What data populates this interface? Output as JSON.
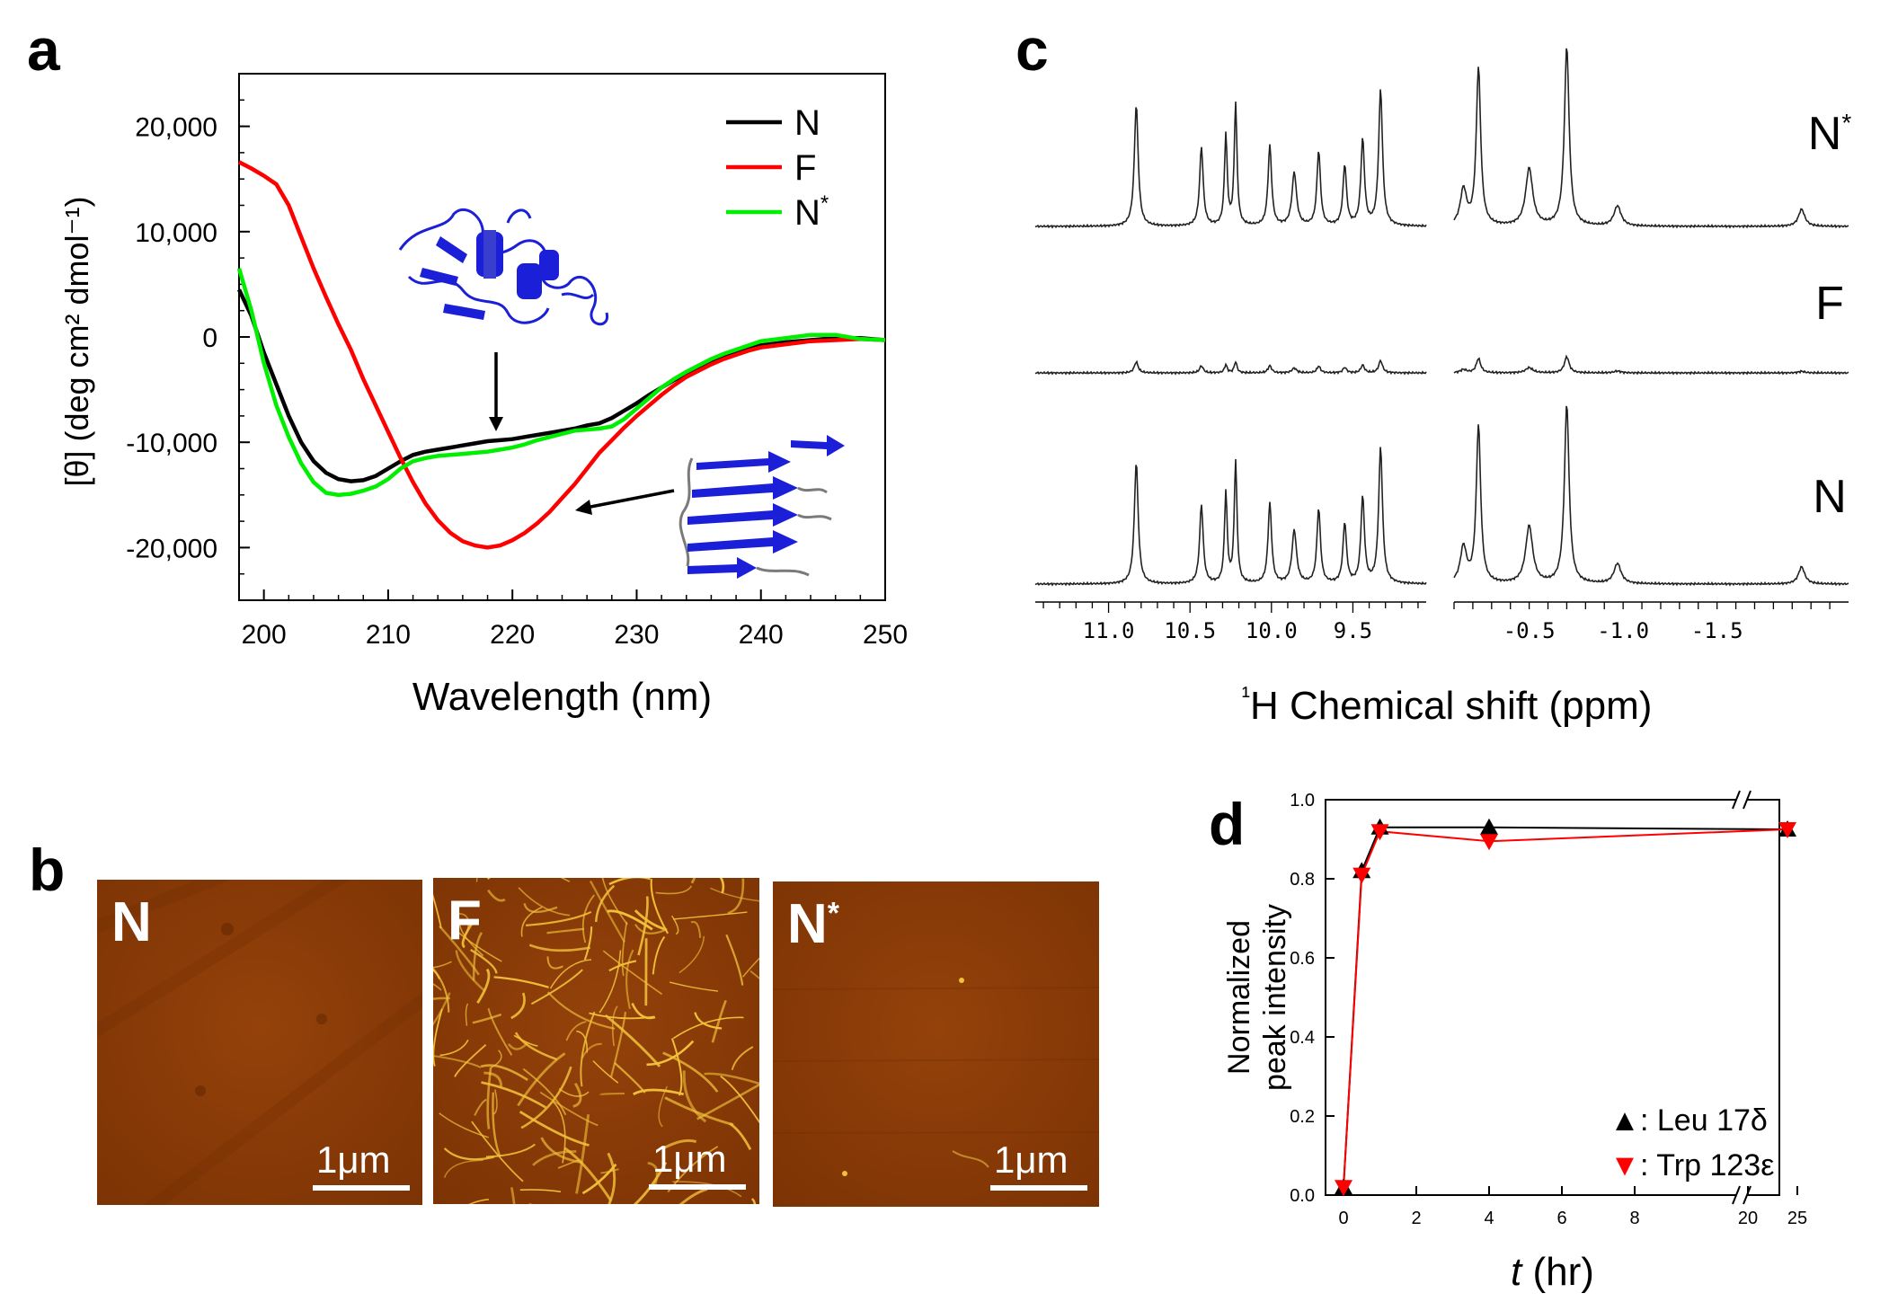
{
  "panels": {
    "a": "a",
    "b": "b",
    "c": "c",
    "d": "d"
  },
  "chart_data": [
    {
      "type": "line",
      "panel": "a",
      "xlabel": "Wavelength (nm)",
      "ylabel": "[θ] (deg cm² dmol⁻¹)",
      "xlim": [
        198,
        250
      ],
      "ylim": [
        -25000,
        25000
      ],
      "xticks": [
        "200",
        "210",
        "220",
        "230",
        "240",
        "250"
      ],
      "yticks": [
        "20,000",
        "10,000",
        "0",
        "-10,000",
        "-20,000"
      ],
      "legend_position": "top-right",
      "series": [
        {
          "name": "N",
          "color": "#000000",
          "x": [
            198,
            199,
            200,
            201,
            202,
            203,
            204,
            205,
            206,
            207,
            208,
            209,
            210,
            211,
            212,
            213,
            214,
            215,
            216,
            217,
            218,
            219,
            220,
            221,
            222,
            223,
            224,
            225,
            226,
            227,
            228,
            229,
            230,
            231,
            232,
            233,
            234,
            235,
            236,
            237,
            238,
            239,
            240,
            242,
            244,
            246,
            248,
            250
          ],
          "y": [
            4500,
            2000,
            -1500,
            -4500,
            -7500,
            -10000,
            -11800,
            -12900,
            -13500,
            -13700,
            -13600,
            -13200,
            -12500,
            -11800,
            -11200,
            -10900,
            -10700,
            -10500,
            -10300,
            -10100,
            -9900,
            -9800,
            -9700,
            -9500,
            -9300,
            -9100,
            -8900,
            -8700,
            -8400,
            -8200,
            -7700,
            -7000,
            -6300,
            -5500,
            -4800,
            -4100,
            -3500,
            -2900,
            -2400,
            -1800,
            -1400,
            -1000,
            -800,
            -500,
            -300,
            -100,
            -100,
            -300
          ]
        },
        {
          "name": "F",
          "color": "#ff0000",
          "x": [
            198,
            199,
            200,
            201,
            202,
            203,
            204,
            205,
            206,
            207,
            208,
            209,
            210,
            211,
            212,
            213,
            214,
            215,
            216,
            217,
            218,
            219,
            220,
            221,
            222,
            223,
            224,
            225,
            226,
            227,
            228,
            229,
            230,
            231,
            232,
            233,
            234,
            235,
            236,
            237,
            238,
            239,
            240,
            242,
            244,
            246,
            248,
            250
          ],
          "y": [
            16600,
            16000,
            15300,
            14500,
            12500,
            9500,
            6500,
            3800,
            1200,
            -1200,
            -4000,
            -6500,
            -9000,
            -11500,
            -13800,
            -15800,
            -17400,
            -18600,
            -19400,
            -19800,
            -20000,
            -19800,
            -19300,
            -18600,
            -17700,
            -16600,
            -15300,
            -14000,
            -12500,
            -11000,
            -9800,
            -8600,
            -7500,
            -6500,
            -5500,
            -4600,
            -3800,
            -3200,
            -2600,
            -2100,
            -1700,
            -1300,
            -1000,
            -700,
            -400,
            -300,
            -200,
            -300
          ]
        },
        {
          "name": "N*",
          "color": "#00ee00",
          "x": [
            198,
            199,
            200,
            201,
            202,
            203,
            204,
            205,
            206,
            207,
            208,
            209,
            210,
            211,
            212,
            213,
            214,
            215,
            216,
            217,
            218,
            219,
            220,
            221,
            222,
            223,
            224,
            225,
            226,
            227,
            228,
            229,
            230,
            231,
            232,
            233,
            234,
            235,
            236,
            237,
            238,
            239,
            240,
            242,
            244,
            246,
            248,
            250
          ],
          "y": [
            6500,
            2500,
            -2500,
            -6500,
            -9500,
            -12000,
            -13800,
            -14800,
            -15000,
            -14900,
            -14600,
            -14200,
            -13500,
            -12500,
            -11800,
            -11500,
            -11300,
            -11200,
            -11100,
            -11000,
            -10900,
            -10700,
            -10500,
            -10200,
            -9800,
            -9500,
            -9200,
            -8900,
            -8800,
            -8700,
            -8500,
            -7800,
            -6800,
            -5800,
            -4800,
            -4000,
            -3300,
            -2700,
            -2100,
            -1600,
            -1200,
            -800,
            -400,
            -100,
            200,
            200,
            -200,
            -300
          ]
        }
      ]
    },
    {
      "type": "line",
      "panel": "c",
      "xlabel": "¹H Chemical shift (ppm)",
      "xticks_left": [
        "11.0",
        "10.5",
        "10.0",
        "9.5"
      ],
      "xticks_right": [
        "-0.5",
        "-1.0",
        "-1.5"
      ],
      "xlim_left": [
        11.45,
        9.05
      ],
      "xlim_right": [
        -0.1,
        -2.2
      ],
      "spectra_order_top_to_bottom": [
        "N*",
        "F",
        "N"
      ],
      "peak_heights_relative": {
        "N*": 1.0,
        "F": 0.09,
        "N": 1.0
      },
      "peaks": [
        {
          "ppm": 10.83,
          "height": 0.85,
          "width": 0.028
        },
        {
          "ppm": 10.43,
          "height": 0.55,
          "width": 0.026
        },
        {
          "ppm": 10.28,
          "height": 0.63,
          "width": 0.02
        },
        {
          "ppm": 10.22,
          "height": 0.85,
          "width": 0.02
        },
        {
          "ppm": 10.01,
          "height": 0.56,
          "width": 0.026
        },
        {
          "ppm": 9.86,
          "height": 0.37,
          "width": 0.033
        },
        {
          "ppm": 9.71,
          "height": 0.52,
          "width": 0.026
        },
        {
          "ppm": 9.55,
          "height": 0.42,
          "width": 0.026
        },
        {
          "ppm": 9.44,
          "height": 0.6,
          "width": 0.026
        },
        {
          "ppm": 9.33,
          "height": 0.95,
          "width": 0.028
        },
        {
          "ppm": -0.15,
          "height": 0.25,
          "width": 0.04
        },
        {
          "ppm": -0.23,
          "height": 1.1,
          "width": 0.028
        },
        {
          "ppm": -0.5,
          "height": 0.4,
          "width": 0.045
        },
        {
          "ppm": -0.7,
          "height": 1.25,
          "width": 0.03
        },
        {
          "ppm": -0.97,
          "height": 0.14,
          "width": 0.045
        },
        {
          "ppm": -1.95,
          "height": 0.12,
          "width": 0.04
        }
      ],
      "labels": [
        "N*",
        "F",
        "N"
      ]
    },
    {
      "type": "line",
      "panel": "d",
      "xlabel": "t (hr)",
      "ylabel": "Normalized peak intensity",
      "ylim": [
        0,
        1.0
      ],
      "yticks": [
        "0.0",
        "0.2",
        "0.4",
        "0.6",
        "0.8",
        "1.0"
      ],
      "xticks": [
        "0",
        "2",
        "4",
        "6",
        "8",
        "20",
        "25"
      ],
      "axis_break": "between 9.5 and 18",
      "series": [
        {
          "name": "Leu 17δ",
          "marker": "triangle-up",
          "color": "#000000",
          "x": [
            0,
            0.5,
            1,
            4,
            24
          ],
          "y": [
            0.02,
            0.82,
            0.93,
            0.93,
            0.925
          ]
        },
        {
          "name": "Trp 123ε",
          "marker": "triangle-down",
          "color": "#ff0000",
          "x": [
            0,
            0.5,
            1,
            4,
            24
          ],
          "y": [
            0.02,
            0.81,
            0.92,
            0.895,
            0.925
          ]
        }
      ],
      "legend": [
        {
          "marker": "▲",
          "text": ": Leu 17δ"
        },
        {
          "marker": "▼",
          "text": ": Trp 123ε"
        }
      ]
    }
  ],
  "afm": [
    {
      "label": "N",
      "sup": "",
      "scale": "1μm"
    },
    {
      "label": "F",
      "sup": "",
      "scale": "1μm"
    },
    {
      "label": "N",
      "sup": "*",
      "scale": "1μm"
    }
  ],
  "colors": {
    "afm_background": "#8a3a06",
    "fibril": "#f2c13a",
    "protein_ribbon": "#1b1fd8"
  }
}
